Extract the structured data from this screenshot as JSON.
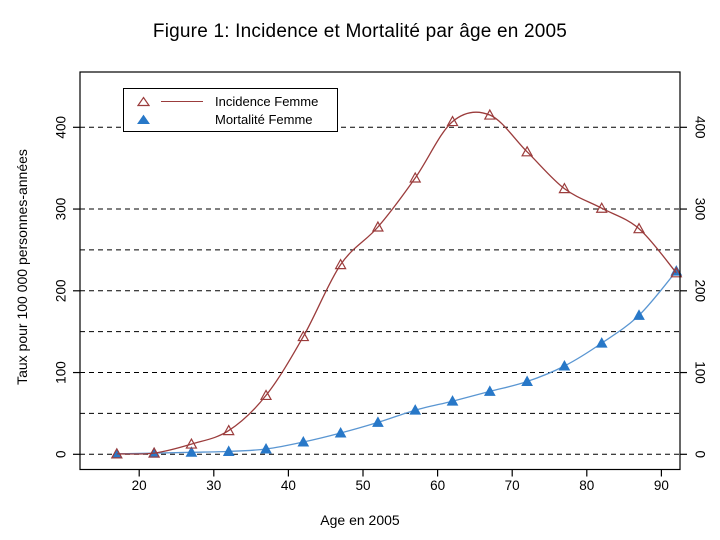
{
  "figure": {
    "title": "Figure 1: Incidence et Mortalité par âge en 2005"
  },
  "chart_data": {
    "type": "line",
    "title": "Figure 1: Incidence et Mortalité par âge en 2005",
    "xlabel": "Age en 2005",
    "ylabel": "Taux pour 100 000 personnes-années",
    "x": [
      17,
      22,
      27,
      32,
      37,
      42,
      47,
      52,
      57,
      62,
      67,
      72,
      77,
      82,
      87,
      92
    ],
    "series": [
      {
        "name": "Incidence Femme",
        "marker": "open-triangle",
        "line_color": "#9b3c3c",
        "marker_color": "#9b3c3c",
        "values": [
          0.5,
          1.5,
          12.5,
          29,
          72,
          144,
          232,
          278,
          338,
          407,
          415,
          370,
          325,
          301,
          276,
          222
        ]
      },
      {
        "name": "Mortalité Femme",
        "marker": "filled-triangle",
        "line_color": "#5a96d2",
        "marker_color": "#2878c8",
        "values": [
          0.5,
          1.5,
          2.5,
          3.5,
          6.5,
          15,
          26,
          39,
          54,
          65,
          77,
          89,
          108,
          136,
          170,
          224
        ]
      }
    ],
    "xticks": [
      20,
      30,
      40,
      50,
      60,
      70,
      80,
      90
    ],
    "ytick_labels": [
      0,
      100,
      200,
      300,
      400
    ],
    "gridlines_y": [
      0,
      50,
      100,
      150,
      200,
      250,
      300,
      400
    ],
    "xlim": [
      12,
      93
    ],
    "ylim": [
      -20,
      465
    ],
    "grid": "dashed-horizontal",
    "legend_position": "top-left",
    "axis_color": "#000000",
    "peak_note": "Incidence curve peaks ~420-425 between ages 62 and 67"
  }
}
